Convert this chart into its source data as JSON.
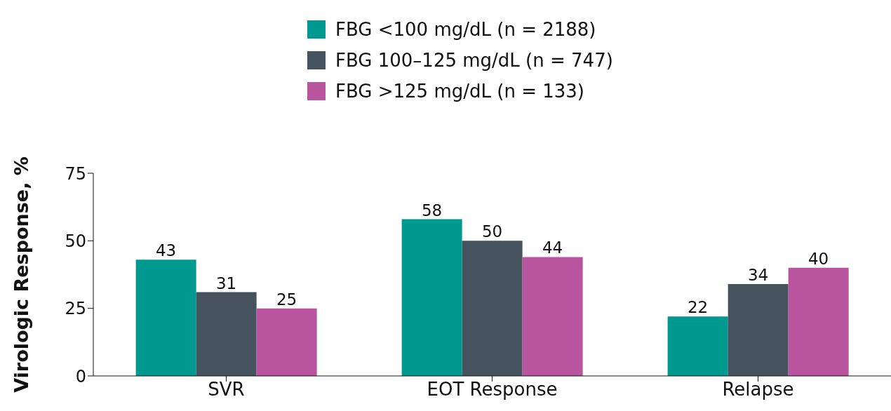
{
  "chart_data": {
    "type": "bar",
    "ylabel": "Virologic Response, %",
    "categories": [
      "SVR",
      "EOT Response",
      "Relapse"
    ],
    "series": [
      {
        "name": "FBG <100 mg/dL (n = 2188)",
        "color": "#009990",
        "values": [
          43,
          58,
          22
        ]
      },
      {
        "name": "FBG 100–125 mg/dL (n = 747)",
        "color": "#44535e",
        "values": [
          31,
          50,
          34
        ]
      },
      {
        "name": "FBG >125 mg/dL (n = 133)",
        "color": "#b9559e",
        "values": [
          25,
          44,
          40
        ]
      }
    ],
    "ylim": [
      0,
      75
    ],
    "yticks": [
      0,
      25,
      50,
      75
    ],
    "grid": false,
    "legend": "top",
    "data_labels": true
  }
}
